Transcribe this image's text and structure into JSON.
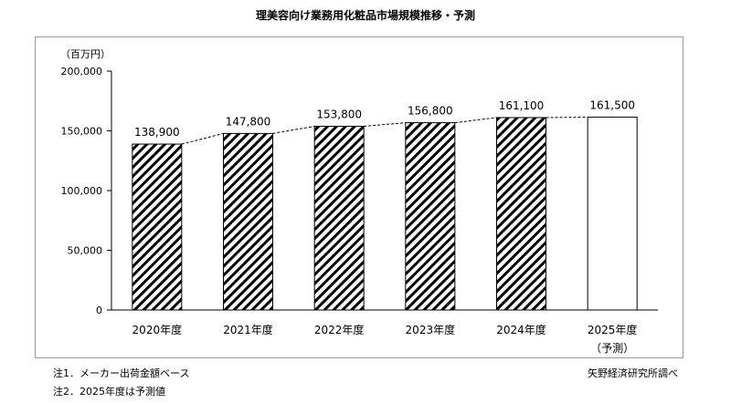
{
  "chart_data": {
    "type": "bar",
    "title": "理美容向け業務用化粧品市場規模推移・予測",
    "ylabel": "（百万円）",
    "xlabel": "",
    "categories": [
      "2020年度",
      "2021年度",
      "2022年度",
      "2023年度",
      "2024年度",
      "2025年度"
    ],
    "category_sublabels": [
      "",
      "",
      "",
      "",
      "",
      "（予測）"
    ],
    "values": [
      138900,
      147800,
      153800,
      156800,
      161100,
      161500
    ],
    "value_labels": [
      "138,900",
      "147,800",
      "153,800",
      "156,800",
      "161,100",
      "161,500"
    ],
    "ylim": [
      0,
      200000
    ],
    "yticks": [
      0,
      50000,
      100000,
      150000,
      200000
    ],
    "ytick_labels": [
      "0",
      "50,000",
      "100,000",
      "150,000",
      "200,000"
    ],
    "forecast_index": 5,
    "bar_pattern": "diagonal-hatch",
    "connector": "dashed",
    "grid": false,
    "legend": "none"
  },
  "notes": {
    "note1": "注1．メーカー出荷金額ベース",
    "note2": "注2．2025年度は予測値",
    "source": "矢野経済研究所調べ"
  }
}
